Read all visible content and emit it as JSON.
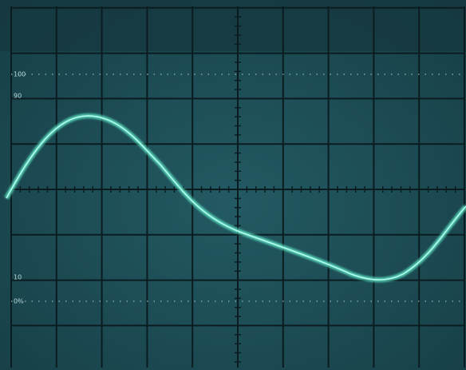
{
  "scale_labels": [
    "100",
    "90",
    "10",
    "0%"
  ]
}
